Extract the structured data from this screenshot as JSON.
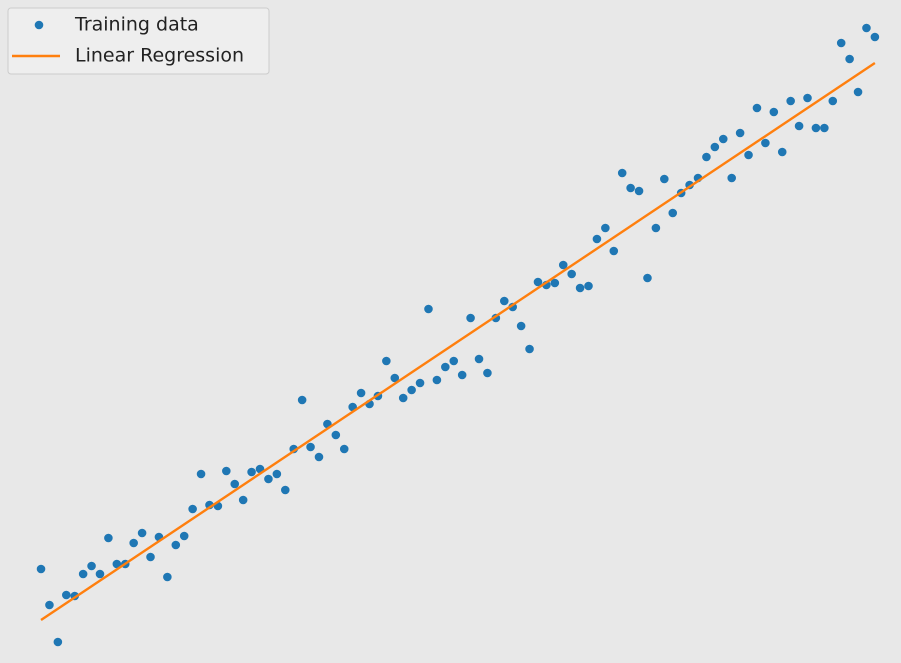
{
  "chart_data": {
    "type": "scatter",
    "legend": "upper left",
    "xlim": [
      -4.87,
      102.1
    ],
    "ylim": [
      0,
      66.3
    ],
    "series": [
      {
        "name": "Training data",
        "type": "scatter",
        "color": "#1f77b4",
        "x": [
          0,
          1,
          2,
          3,
          4,
          5,
          6,
          7,
          8,
          9,
          10,
          11,
          12,
          13,
          14,
          15,
          16,
          17,
          18,
          19,
          20,
          21,
          22,
          23,
          24,
          25,
          26,
          27,
          28,
          29,
          30,
          31,
          32,
          33,
          34,
          35,
          36,
          37,
          38,
          39,
          40,
          41,
          42,
          43,
          44,
          45,
          46,
          47,
          48,
          49,
          50,
          51,
          52,
          53,
          54,
          55,
          56,
          57,
          58,
          59,
          60,
          61,
          62,
          63,
          64,
          65,
          66,
          67,
          68,
          69,
          70,
          71,
          72,
          73,
          74,
          75,
          76,
          77,
          78,
          79,
          80,
          81,
          82,
          83,
          84,
          85,
          86,
          87,
          88,
          89,
          90,
          91,
          92,
          93,
          94,
          95,
          96,
          97,
          98,
          99
        ],
        "values": [
          9.4,
          5.8,
          2.1,
          6.8,
          6.7,
          8.9,
          9.7,
          8.9,
          12.5,
          9.9,
          9.9,
          12.0,
          13.0,
          10.6,
          12.6,
          8.6,
          11.8,
          12.7,
          15.4,
          18.9,
          15.8,
          15.7,
          19.2,
          17.9,
          16.3,
          19.1,
          19.4,
          18.4,
          18.9,
          17.3,
          21.4,
          26.3,
          21.6,
          20.6,
          23.9,
          22.8,
          21.4,
          25.6,
          27.0,
          25.9,
          26.7,
          30.2,
          28.5,
          26.5,
          27.3,
          28.0,
          35.4,
          28.3,
          29.6,
          30.2,
          28.8,
          34.5,
          30.4,
          29.0,
          34.5,
          36.2,
          35.6,
          33.7,
          31.4,
          38.1,
          37.8,
          38.0,
          39.8,
          38.9,
          37.5,
          37.7,
          42.4,
          43.5,
          41.2,
          49.0,
          47.5,
          47.2,
          38.5,
          43.5,
          48.4,
          45.0,
          47.0,
          47.8,
          48.5,
          50.6,
          51.6,
          52.4,
          48.5,
          53.0,
          50.8,
          55.5,
          52.0,
          55.1,
          51.1,
          56.2,
          53.7,
          56.5,
          53.5,
          53.5,
          56.2,
          62.0,
          60.4,
          57.1,
          63.5,
          62.6
        ]
      },
      {
        "name": "Linear Regression",
        "type": "line",
        "color": "#ff7f0e",
        "x": [
          0,
          99
        ],
        "values": [
          4.3,
          60.0
        ]
      }
    ]
  }
}
